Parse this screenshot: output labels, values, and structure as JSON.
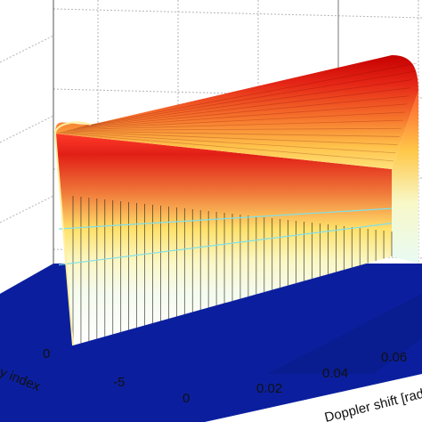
{
  "chart_data": {
    "type": "surface",
    "title": "",
    "xlabel": "Doppler shift [rad]",
    "ylabel": "Delay index",
    "zlabel": "",
    "x_ticks": [
      "0",
      "0.02",
      "0.04",
      "0.06"
    ],
    "y_ticks": [
      "0",
      "-5"
    ],
    "x_range": [
      0,
      0.07
    ],
    "y_range": [
      -10,
      2
    ],
    "z_range": [
      0,
      1
    ],
    "grid": true,
    "colormap": "jet",
    "surface": {
      "description_values": {
        "delay_band": [
          -1,
          1
        ],
        "doppler_band": [
          0,
          0.07
        ],
        "peak": 1.0,
        "floor": 0.0
      },
      "cross_section": [
        {
          "y": -1.0,
          "z": 0.0
        },
        {
          "y": -0.9,
          "z": 0.7
        },
        {
          "y": -0.6,
          "z": 0.93
        },
        {
          "y": -0.3,
          "z": 0.99
        },
        {
          "y": 0.0,
          "z": 1.0
        },
        {
          "y": 0.3,
          "z": 0.99
        },
        {
          "y": 0.6,
          "z": 0.93
        },
        {
          "y": 0.9,
          "z": 0.7
        },
        {
          "y": 1.0,
          "z": 0.0
        }
      ]
    },
    "colors": {
      "floor": "#0b1f9e",
      "floor_dark": "#081476",
      "peak": "#c80000",
      "mid": "#ffd94a",
      "low": "#f3fbd8",
      "cyan": "#7fe0ea",
      "grid": "#b5b5b5"
    }
  }
}
